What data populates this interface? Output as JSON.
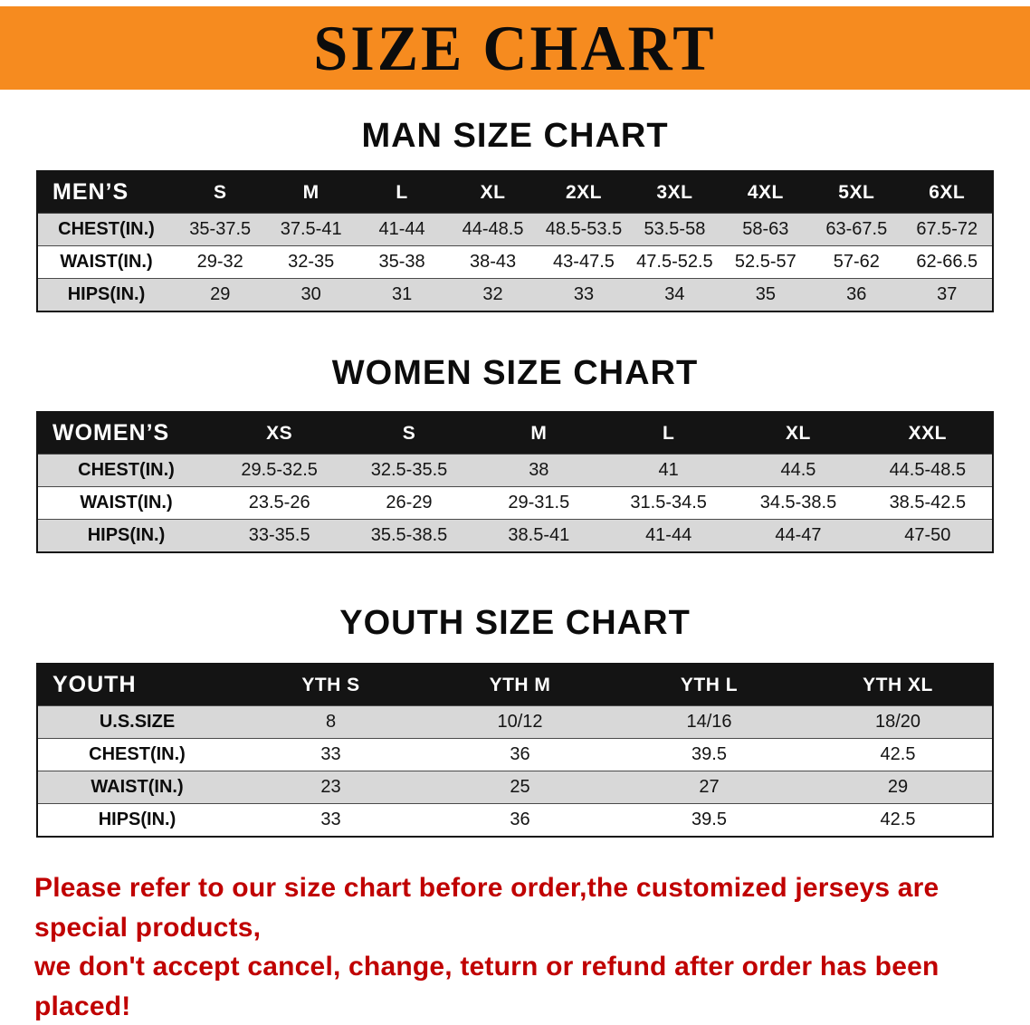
{
  "banner": {
    "title": "SIZE CHART"
  },
  "colors": {
    "banner_orange": "#F68B1F",
    "table_header_black": "#141414",
    "row_alt_gray": "#D8D8D8",
    "note_red": "#C00000"
  },
  "chart_data": [
    {
      "type": "table",
      "title": "MAN SIZE CHART",
      "corner": "MEN’S",
      "columns": [
        "S",
        "M",
        "L",
        "XL",
        "2XL",
        "3XL",
        "4XL",
        "5XL",
        "6XL"
      ],
      "rows": [
        {
          "label": "CHEST(IN.)",
          "values": [
            "35-37.5",
            "37.5-41",
            "41-44",
            "44-48.5",
            "48.5-53.5",
            "53.5-58",
            "58-63",
            "63-67.5",
            "67.5-72"
          ]
        },
        {
          "label": "WAIST(IN.)",
          "values": [
            "29-32",
            "32-35",
            "35-38",
            "38-43",
            "43-47.5",
            "47.5-52.5",
            "52.5-57",
            "57-62",
            "62-66.5"
          ]
        },
        {
          "label": "HIPS(IN.)",
          "values": [
            "29",
            "30",
            "31",
            "32",
            "33",
            "34",
            "35",
            "36",
            "37"
          ]
        }
      ]
    },
    {
      "type": "table",
      "title": "WOMEN SIZE CHART",
      "corner": "WOMEN’S",
      "columns": [
        "XS",
        "S",
        "M",
        "L",
        "XL",
        "XXL"
      ],
      "rows": [
        {
          "label": "CHEST(IN.)",
          "values": [
            "29.5-32.5",
            "32.5-35.5",
            "38",
            "41",
            "44.5",
            "44.5-48.5"
          ]
        },
        {
          "label": "WAIST(IN.)",
          "values": [
            "23.5-26",
            "26-29",
            "29-31.5",
            "31.5-34.5",
            "34.5-38.5",
            "38.5-42.5"
          ]
        },
        {
          "label": "HIPS(IN.)",
          "values": [
            "33-35.5",
            "35.5-38.5",
            "38.5-41",
            "41-44",
            "44-47",
            "47-50"
          ]
        }
      ]
    },
    {
      "type": "table",
      "title": "YOUTH SIZE CHART",
      "corner": "YOUTH",
      "columns": [
        "YTH S",
        "YTH M",
        "YTH L",
        "YTH XL"
      ],
      "rows": [
        {
          "label": "U.S.SIZE",
          "values": [
            "8",
            "10/12",
            "14/16",
            "18/20"
          ]
        },
        {
          "label": "CHEST(IN.)",
          "values": [
            "33",
            "36",
            "39.5",
            "42.5"
          ]
        },
        {
          "label": "WAIST(IN.)",
          "values": [
            "23",
            "25",
            "27",
            "29"
          ]
        },
        {
          "label": "HIPS(IN.)",
          "values": [
            "33",
            "36",
            "39.5",
            "42.5"
          ]
        }
      ]
    }
  ],
  "note": {
    "line1": "Please refer to our size chart before order,the customized jerseys are special products,",
    "line2": "we don't accept cancel, change, teturn or refund after order has been placed!"
  }
}
